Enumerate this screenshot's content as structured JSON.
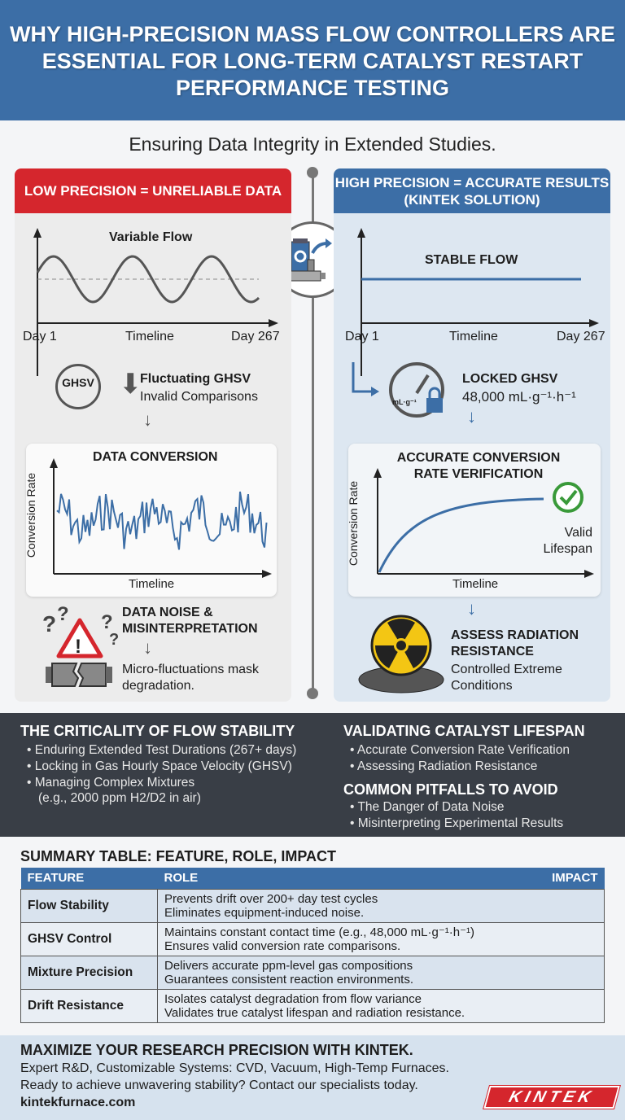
{
  "header": {
    "title": "Why High-Precision Mass Flow Controllers Are Essential for Long-Term Catalyst Restart Performance Testing"
  },
  "subtitle": "Ensuring Data Integrity in Extended Studies.",
  "left": {
    "heading": "LOW PRECISION = UNRELIABLE DATA",
    "chart_title": "Variable Flow",
    "x_start": "Day 1",
    "x_mid": "Timeline",
    "x_end": "Day 267",
    "ghsv_icon_label": "GHSV",
    "ghsv_title": "Fluctuating GHSV",
    "ghsv_sub": "Invalid Comparisons",
    "conv_title": "DATA CONVERSION",
    "conv_ylabel": "Conversion Rate",
    "conv_xlabel": "Timeline",
    "noise_title": "DATA NOISE & MISINTERPRETATION",
    "noise_sub": "Micro-fluctuations mask degradation.",
    "color": "#d5262d"
  },
  "right": {
    "heading": "HIGH PRECISION = ACCURATE RESULTS (KINTEK SOLUTION)",
    "chart_title": "STABLE FLOW",
    "x_start": "Day 1",
    "x_mid": "Timeline",
    "x_end": "Day 267",
    "gauge_label": "mL·g⁻¹",
    "ghsv_title": "LOCKED GHSV",
    "ghsv_value": "48,000 mL·g⁻¹·h⁻¹",
    "conv_title": "ACCURATE CONVERSION RATE VERIFICATION",
    "conv_ylabel": "Conversion Rate",
    "conv_xlabel": "Timeline",
    "valid_label": "Valid Lifespan",
    "rad_title": "ASSESS RADIATION RESISTANCE",
    "rad_sub": "Controlled Extreme Conditions",
    "color": "#3c6ea6"
  },
  "info": {
    "criticality": {
      "title": "THE CRITICALITY OF FLOW STABILITY",
      "items": [
        "Enduring Extended Test Durations (267+ days)",
        "Locking in Gas Hourly Space Velocity (GHSV)",
        "Managing Complex Mixtures"
      ],
      "note": "(e.g., 2000 ppm H2/D2 in air)"
    },
    "lifespan": {
      "title": "VALIDATING CATALYST LIFESPAN",
      "items": [
        "Accurate Conversion Rate Verification",
        "Assessing Radiation Resistance"
      ]
    },
    "pitfalls": {
      "title": "COMMON PITFALLS TO AVOID",
      "items": [
        "The Danger of Data Noise",
        "Misinterpreting Experimental Results"
      ]
    }
  },
  "table": {
    "title": "SUMMARY TABLE: FEATURE, ROLE, IMPACT",
    "headers": [
      "FEATURE",
      "ROLE",
      "IMPACT"
    ],
    "rows": [
      [
        "Flow Stability",
        "Prevents drift over 200+ day test cycles",
        "Eliminates equipment-induced noise."
      ],
      [
        "GHSV Control",
        "Maintains constant contact time (e.g., 48,000 mL·g⁻¹·h⁻¹)",
        "Ensures valid conversion rate comparisons."
      ],
      [
        "Mixture Precision",
        "Delivers accurate ppm-level gas compositions",
        "Guarantees consistent reaction environments."
      ],
      [
        "Drift Resistance",
        "Isolates catalyst degradation from flow variance",
        "Validates true catalyst lifespan and radiation resistance."
      ]
    ]
  },
  "footer": {
    "title": "MAXIMIZE YOUR RESEARCH PRECISION WITH KINTEK.",
    "line1": "Expert R&D, Customizable Systems: CVD, Vacuum, High-Temp Furnaces.",
    "line2": "Ready to achieve unwavering stability? Contact our specialists today.",
    "url": "kintekfurnace.com",
    "logo": "KINTEK"
  }
}
